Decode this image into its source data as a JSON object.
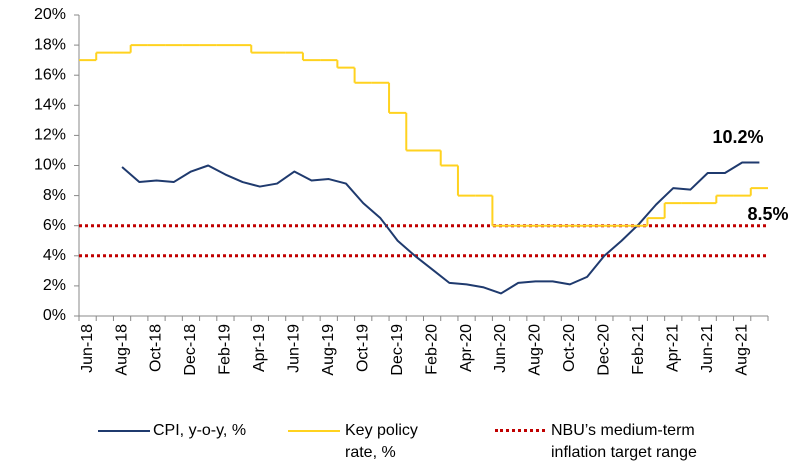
{
  "chart_data": {
    "type": "line",
    "categories": [
      "Jun-18",
      null,
      "Aug-18",
      null,
      "Oct-18",
      null,
      "Dec-18",
      null,
      "Feb-19",
      null,
      "Apr-19",
      null,
      "Jun-19",
      null,
      "Aug-19",
      null,
      "Oct-19",
      null,
      "Dec-19",
      null,
      "Feb-20",
      null,
      "Apr-20",
      null,
      "Jun-20",
      null,
      "Aug-20",
      null,
      "Oct-20",
      null,
      "Dec-20",
      null,
      "Feb-21",
      null,
      "Apr-21",
      null,
      "Jun-21",
      null,
      "Aug-21",
      null
    ],
    "series": [
      {
        "name": "CPI, y-o-y, %",
        "color": "#1f3a6e",
        "values": [
          null,
          null,
          9.9,
          8.9,
          9.0,
          8.9,
          9.6,
          10.0,
          9.4,
          8.9,
          8.6,
          8.8,
          9.6,
          9.0,
          9.1,
          8.8,
          7.5,
          6.5,
          5.0,
          4.0,
          3.1,
          2.2,
          2.1,
          1.9,
          1.5,
          2.2,
          2.3,
          2.3,
          2.1,
          2.6,
          4.0,
          5.0,
          6.1,
          7.4,
          8.5,
          8.4,
          9.5,
          9.5,
          10.2,
          10.2
        ]
      },
      {
        "name": "Key policy rate, %",
        "color": "#ffd21f",
        "step": true,
        "values": [
          17,
          17.5,
          17.5,
          18,
          18,
          18,
          18,
          18,
          18,
          18,
          17.5,
          17.5,
          17.5,
          17,
          17,
          16.5,
          15.5,
          15.5,
          13.5,
          11,
          11,
          10,
          8,
          8,
          6,
          6,
          6,
          6,
          6,
          6,
          6,
          6,
          6,
          6.5,
          7.5,
          7.5,
          7.5,
          8,
          8,
          8.5
        ]
      }
    ],
    "target_range": {
      "name": "NBU’s medium-term inflation target range",
      "color": "#c00000",
      "values": [
        4,
        6
      ]
    },
    "annotations": [
      "10.2%",
      "8.5%"
    ],
    "ylim": [
      0,
      20
    ],
    "yticks": [
      {
        "value": 0,
        "label": "0%"
      },
      {
        "value": 2,
        "label": "2%"
      },
      {
        "value": 4,
        "label": "4%"
      },
      {
        "value": 6,
        "label": "6%"
      },
      {
        "value": 8,
        "label": "8%"
      },
      {
        "value": 10,
        "label": "10%"
      },
      {
        "value": 12,
        "label": "12%"
      },
      {
        "value": 14,
        "label": "14%"
      },
      {
        "value": 16,
        "label": "16%"
      },
      {
        "value": 18,
        "label": "18%"
      },
      {
        "value": 20,
        "label": "20%"
      }
    ],
    "grid": false
  }
}
